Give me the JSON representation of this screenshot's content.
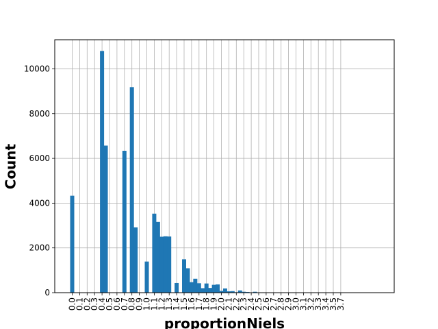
{
  "chart_data": {
    "type": "bar",
    "title": "",
    "xlabel": "proportionNiels",
    "ylabel": "Count",
    "ylim": [
      0,
      11300
    ],
    "y_ticks": [
      0,
      2000,
      4000,
      6000,
      8000,
      10000
    ],
    "x_tick_labels": [
      "0.0",
      "0.1",
      "0.2",
      "0.3",
      "0.4",
      "0.5",
      "0.6",
      "0.7",
      "0.8",
      "0.9",
      "1.0",
      "1.1",
      "1.2",
      "1.3",
      "1.4",
      "1.5",
      "1.6",
      "1.7",
      "1.8",
      "1.9",
      "2.0",
      "2.1",
      "2.2",
      "2.3",
      "2.4",
      "2.5",
      "2.6",
      "2.7",
      "2.8",
      "2.9",
      "3.0",
      "3.1",
      "3.2",
      "3.3",
      "3.4",
      "3.5",
      "3.7"
    ],
    "grid": true,
    "bar_color": "#1f77b4",
    "x": [
      0.0,
      0.4,
      0.45,
      0.7,
      0.8,
      0.85,
      1.0,
      1.1,
      1.15,
      1.2,
      1.25,
      1.3,
      1.4,
      1.5,
      1.55,
      1.6,
      1.65,
      1.7,
      1.75,
      1.8,
      1.85,
      1.9,
      1.95,
      2.0,
      2.05,
      2.1,
      2.15,
      2.2,
      2.25,
      2.3,
      2.35,
      2.4,
      2.45,
      2.5,
      2.55,
      2.6
    ],
    "values": [
      4330,
      10800,
      6570,
      6340,
      9180,
      2920,
      1390,
      3530,
      3160,
      2500,
      2520,
      2510,
      430,
      1490,
      1090,
      470,
      620,
      420,
      200,
      410,
      210,
      350,
      370,
      80,
      190,
      60,
      70,
      20,
      100,
      40,
      30,
      10,
      40,
      10,
      10,
      5
    ]
  }
}
